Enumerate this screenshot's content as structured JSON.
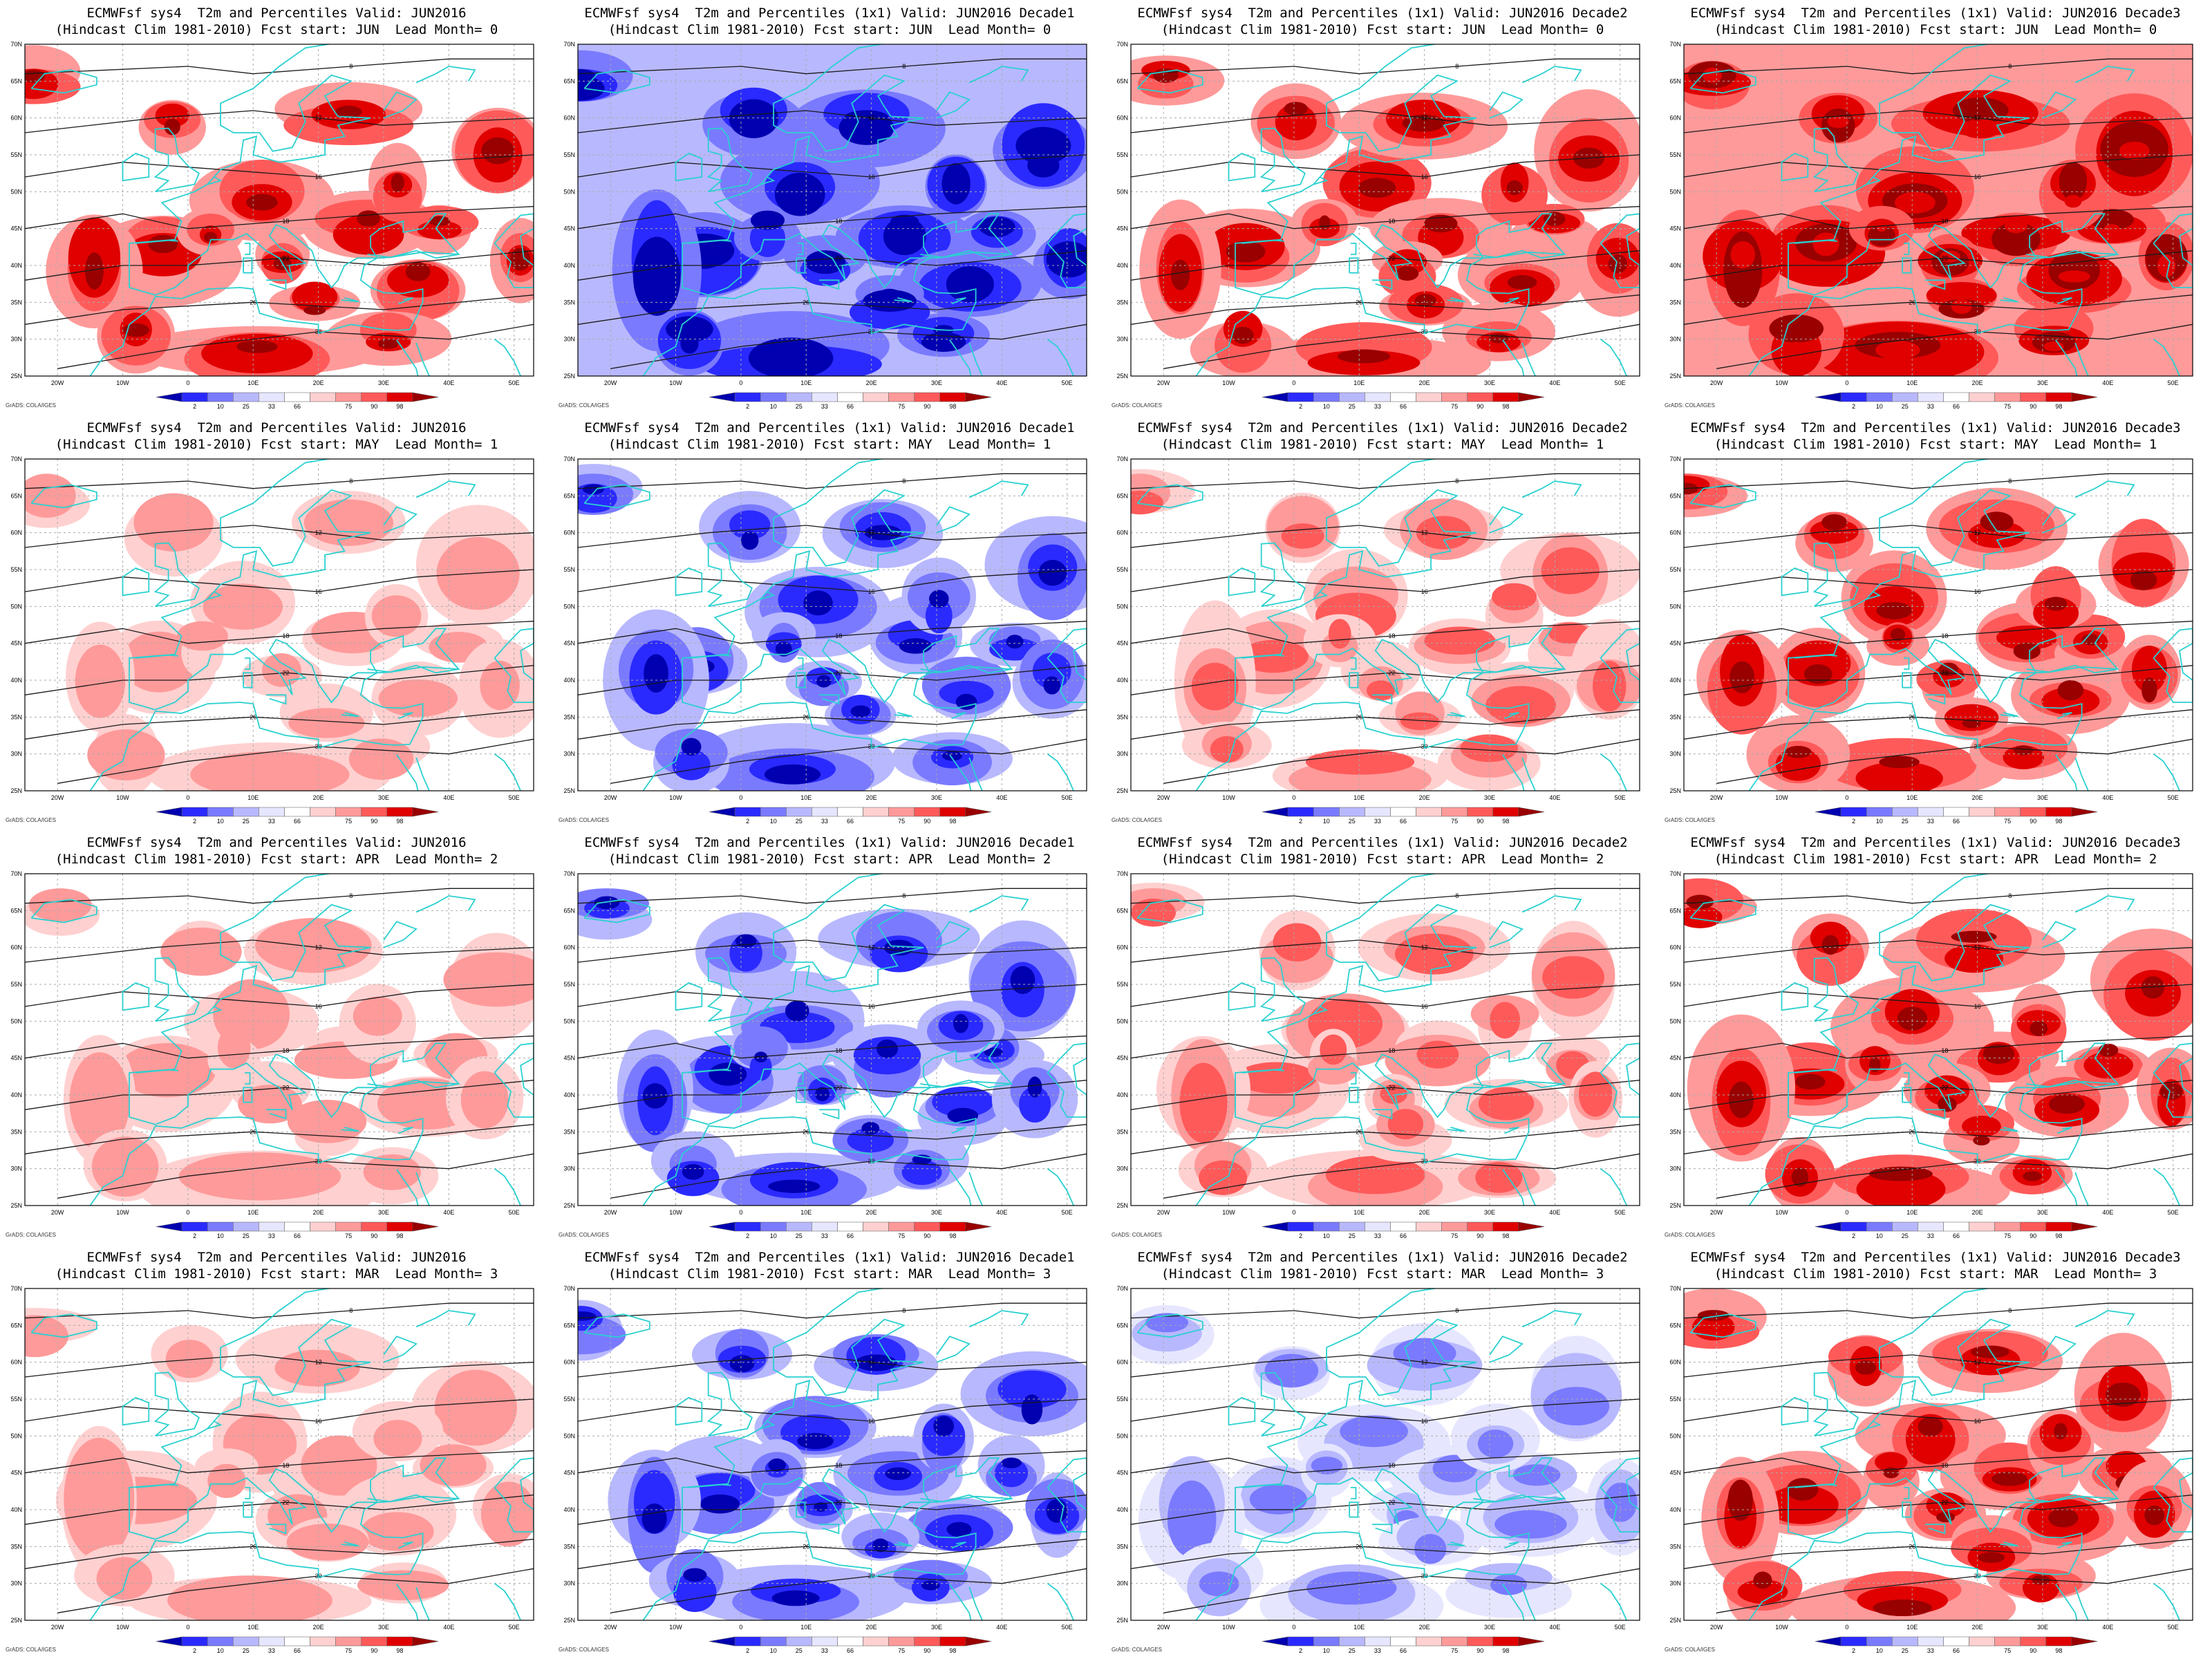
{
  "colorbar": {
    "labels": [
      "2",
      "10",
      "25",
      "33",
      "66",
      "75",
      "90",
      "98"
    ],
    "colors": [
      "#0000b0",
      "#2a2aff",
      "#7a7aff",
      "#b8b8ff",
      "#e6e6ff",
      "#ffffff",
      "#ffd0d0",
      "#ff9a9a",
      "#ff5a5a",
      "#e00000",
      "#990000"
    ]
  },
  "axes": {
    "lat_labels": [
      "70N",
      "65N",
      "60N",
      "55N",
      "50N",
      "45N",
      "40N",
      "35N",
      "30N",
      "25N"
    ],
    "lon_labels": [
      "20W",
      "10W",
      "0",
      "10E",
      "20E",
      "30E",
      "40E",
      "50E"
    ]
  },
  "credit": "GrADS: COLA/IGES",
  "contour_labels": [
    "8",
    "12",
    "16",
    "18",
    "22",
    "26",
    "30"
  ],
  "panels": [
    {
      "title1": "ECMWFsf sys4  T2m and Percentiles Valid: JUN2016",
      "title2": "(Hindcast Clim 1981-2010) Fcst start: JUN  Lead Month= 0",
      "level": 2
    },
    {
      "title1": "ECMWFsf sys4  T2m and Percentiles (1x1) Valid: JUN2016 Decade1",
      "title2": "(Hindcast Clim 1981-2010) Fcst start: JUN  Lead Month= 0",
      "level": -3
    },
    {
      "title1": "ECMWFsf sys4  T2m and Percentiles (1x1) Valid: JUN2016 Decade2",
      "title2": "(Hindcast Clim 1981-2010) Fcst start: JUN  Lead Month= 0",
      "level": 2
    },
    {
      "title1": "ECMWFsf sys4  T2m and Percentiles (1x1) Valid: JUN2016 Decade3",
      "title2": "(Hindcast Clim 1981-2010) Fcst start: JUN  Lead Month= 0",
      "level": 3
    },
    {
      "title1": "ECMWFsf sys4  T2m and Percentiles Valid: JUN2016",
      "title2": "(Hindcast Clim 1981-2010) Fcst start: MAY  Lead Month= 1",
      "level": 0
    },
    {
      "title1": "ECMWFsf sys4  T2m and Percentiles (1x1) Valid: JUN2016 Decade1",
      "title2": "(Hindcast Clim 1981-2010) Fcst start: MAY  Lead Month= 1",
      "level": -2
    },
    {
      "title1": "ECMWFsf sys4  T2m and Percentiles (1x1) Valid: JUN2016 Decade2",
      "title2": "(Hindcast Clim 1981-2010) Fcst start: MAY  Lead Month= 1",
      "level": 1
    },
    {
      "title1": "ECMWFsf sys4  T2m and Percentiles (1x1) Valid: JUN2016 Decade3",
      "title2": "(Hindcast Clim 1981-2010) Fcst start: MAY  Lead Month= 1",
      "level": 2.5
    },
    {
      "title1": "ECMWFsf sys4  T2m and Percentiles Valid: JUN2016",
      "title2": "(Hindcast Clim 1981-2010) Fcst start: APR  Lead Month= 2",
      "level": 0
    },
    {
      "title1": "ECMWFsf sys4  T2m and Percentiles (1x1) Valid: JUN2016 Decade1",
      "title2": "(Hindcast Clim 1981-2010) Fcst start: APR  Lead Month= 2",
      "level": -2.5
    },
    {
      "title1": "ECMWFsf sys4  T2m and Percentiles (1x1) Valid: JUN2016 Decade2",
      "title2": "(Hindcast Clim 1981-2010) Fcst start: APR  Lead Month= 2",
      "level": 1
    },
    {
      "title1": "ECMWFsf sys4  T2m and Percentiles (1x1) Valid: JUN2016 Decade3",
      "title2": "(Hindcast Clim 1981-2010) Fcst start: APR  Lead Month= 2",
      "level": 2.5
    },
    {
      "title1": "ECMWFsf sys4  T2m and Percentiles Valid: JUN2016",
      "title2": "(Hindcast Clim 1981-2010) Fcst start: MAR  Lead Month= 3",
      "level": 0
    },
    {
      "title1": "ECMWFsf sys4  T2m and Percentiles (1x1) Valid: JUN2016 Decade1",
      "title2": "(Hindcast Clim 1981-2010) Fcst start: MAR  Lead Month= 3",
      "level": -2.5
    },
    {
      "title1": "ECMWFsf sys4  T2m and Percentiles (1x1) Valid: JUN2016 Decade2",
      "title2": "(Hindcast Clim 1981-2010) Fcst start: MAR  Lead Month= 3",
      "level": -1
    },
    {
      "title1": "ECMWFsf sys4  T2m and Percentiles (1x1) Valid: JUN2016 Decade3",
      "title2": "(Hindcast Clim 1981-2010) Fcst start: MAR  Lead Month= 3",
      "level": 2
    }
  ]
}
